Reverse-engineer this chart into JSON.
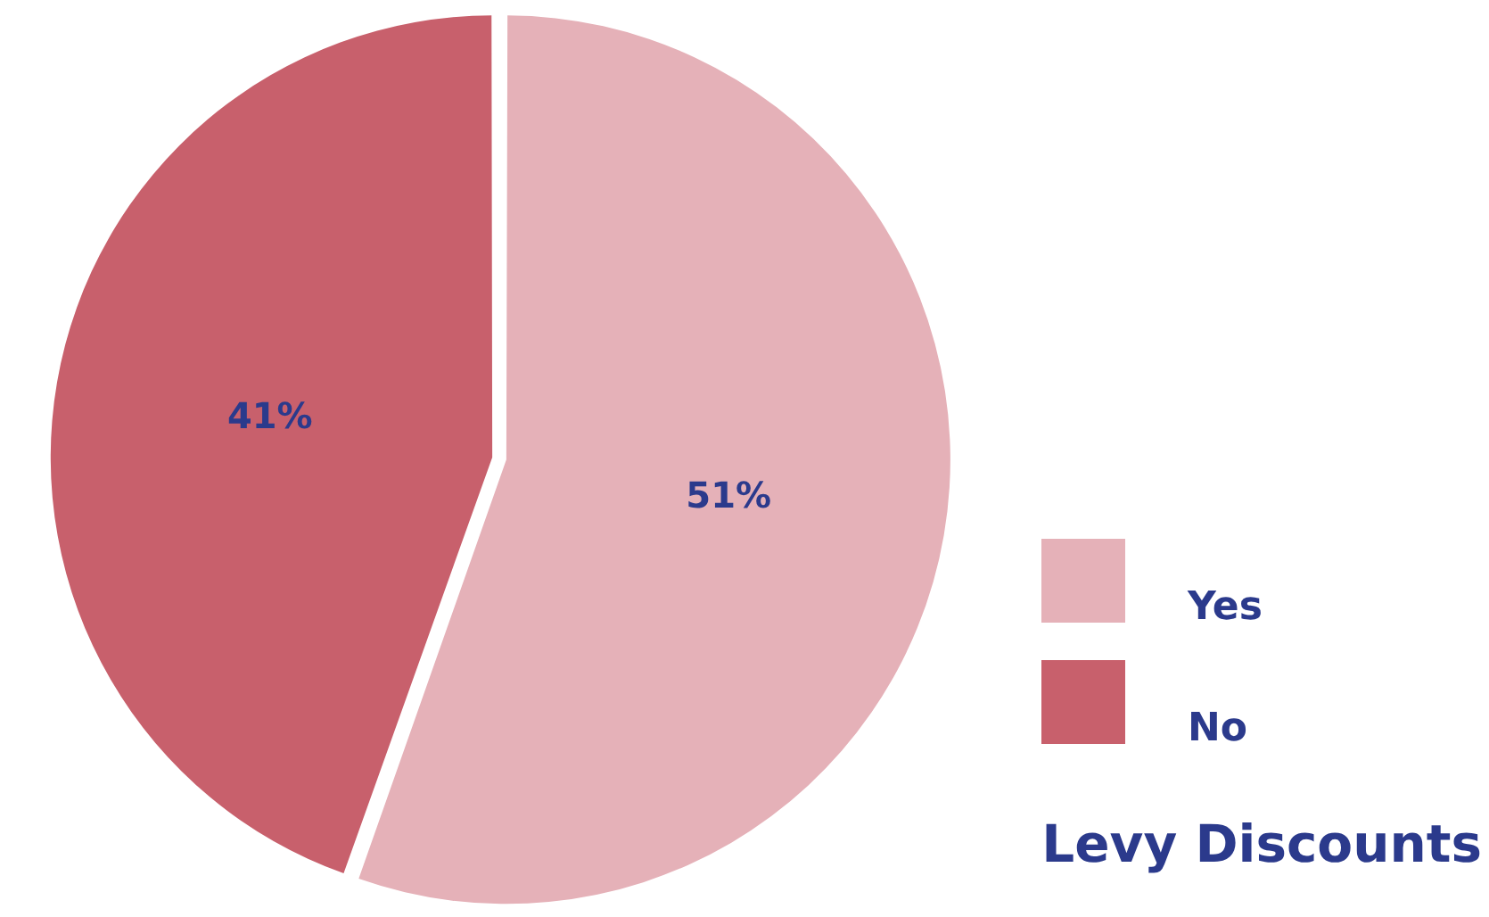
{
  "chart_data": {
    "type": "pie",
    "title": "Levy Discounts",
    "categories": [
      "Yes",
      "No"
    ],
    "values": [
      51,
      41
    ],
    "value_labels": [
      "51%",
      "41%"
    ],
    "colors": [
      "#e5b1b8",
      "#c8606c"
    ],
    "legend": "bottom right"
  }
}
